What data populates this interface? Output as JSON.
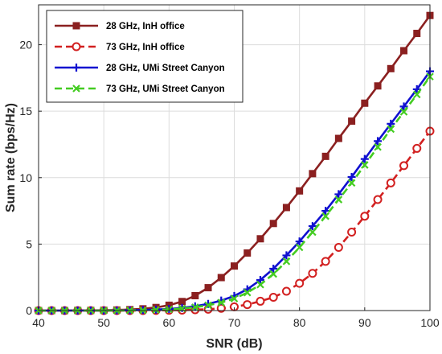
{
  "chart_data": {
    "type": "line",
    "title": "",
    "xlabel": "SNR (dB)",
    "ylabel": "Sum rate (bps/Hz)",
    "xlim": [
      40,
      100
    ],
    "ylim": [
      0,
      23
    ],
    "xticks": [
      "40",
      "50",
      "60",
      "70",
      "80",
      "90",
      "100"
    ],
    "yticks": [
      "0",
      "5",
      "10",
      "15",
      "20"
    ],
    "grid": true,
    "legend_position": "top-left",
    "x": [
      40,
      42,
      44,
      46,
      48,
      50,
      52,
      54,
      56,
      58,
      60,
      62,
      64,
      66,
      68,
      70,
      72,
      74,
      76,
      78,
      80,
      82,
      84,
      86,
      88,
      90,
      92,
      94,
      96,
      98,
      100
    ],
    "series": [
      {
        "name": "28 GHz, InH office",
        "color": "#8b2020",
        "marker": "square",
        "dashed": false,
        "values": [
          0.0,
          0.0,
          0.0,
          0.01,
          0.01,
          0.02,
          0.04,
          0.07,
          0.13,
          0.23,
          0.4,
          0.68,
          1.12,
          1.72,
          2.48,
          3.35,
          4.33,
          5.4,
          6.55,
          7.75,
          9.0,
          10.3,
          11.6,
          12.95,
          14.25,
          15.6,
          16.9,
          18.2,
          19.55,
          20.85,
          22.2
        ]
      },
      {
        "name": "73 GHz, InH office",
        "color": "#d22020",
        "marker": "circle",
        "dashed": true,
        "values": [
          0.0,
          0.0,
          0.0,
          0.0,
          0.0,
          0.0,
          0.0,
          0.0,
          0.0,
          0.01,
          0.02,
          0.03,
          0.06,
          0.1,
          0.17,
          0.28,
          0.45,
          0.7,
          1.0,
          1.45,
          2.05,
          2.8,
          3.7,
          4.75,
          5.9,
          7.1,
          8.35,
          9.6,
          10.9,
          12.2,
          13.5
        ]
      },
      {
        "name": "28 GHz, UMi Street Canyon",
        "color": "#1010d0",
        "marker": "plus",
        "dashed": false,
        "values": [
          0.0,
          0.0,
          0.0,
          0.0,
          0.0,
          0.0,
          0.01,
          0.02,
          0.04,
          0.07,
          0.12,
          0.2,
          0.32,
          0.5,
          0.75,
          1.1,
          1.6,
          2.3,
          3.15,
          4.15,
          5.2,
          6.35,
          7.5,
          8.75,
          10.05,
          11.4,
          12.75,
          14.05,
          15.35,
          16.65,
          18.0
        ]
      },
      {
        "name": "73 GHz, UMi Street Canyon",
        "color": "#44cc22",
        "marker": "x",
        "dashed": true,
        "values": [
          0.0,
          0.0,
          0.0,
          0.0,
          0.0,
          0.0,
          0.0,
          0.01,
          0.02,
          0.05,
          0.09,
          0.15,
          0.25,
          0.4,
          0.6,
          0.9,
          1.35,
          1.95,
          2.75,
          3.7,
          4.75,
          5.9,
          7.1,
          8.35,
          9.6,
          10.95,
          12.3,
          13.65,
          14.95,
          16.25,
          17.6
        ]
      }
    ]
  }
}
